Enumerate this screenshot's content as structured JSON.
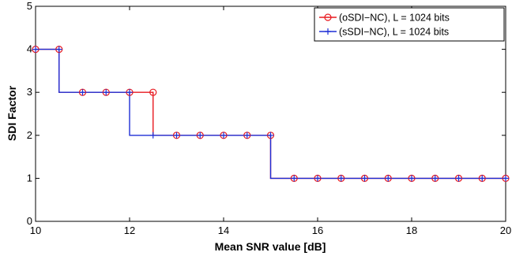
{
  "chart_data": {
    "type": "line",
    "xlabel": "Mean SNR value [dB]",
    "ylabel": "SDI Factor",
    "xlim": [
      10,
      20
    ],
    "ylim": [
      0,
      5
    ],
    "xticks": [
      10,
      12,
      14,
      16,
      18,
      20
    ],
    "yticks": [
      0,
      1,
      2,
      3,
      4,
      5
    ],
    "grid": false,
    "legend_position": "top-right",
    "x": [
      10,
      10.5,
      11,
      11.5,
      12,
      12.5,
      13,
      13.5,
      14,
      14.5,
      15,
      15.5,
      16,
      16.5,
      17,
      17.5,
      18,
      18.5,
      19,
      19.5,
      20
    ],
    "series": [
      {
        "name": "(oSDI−NC), L = 1024 bits",
        "color": "#e8191f",
        "marker": "circle",
        "values": [
          4,
          4,
          3,
          3,
          3,
          3,
          2,
          2,
          2,
          2,
          2,
          1,
          1,
          1,
          1,
          1,
          1,
          1,
          1,
          1,
          1
        ]
      },
      {
        "name": "(sSDI−NC), L = 1024 bits",
        "color": "#1f2fd6",
        "marker": "plus",
        "values": [
          4,
          4,
          3,
          3,
          3,
          2,
          2,
          2,
          2,
          2,
          2,
          1,
          1,
          1,
          1,
          1,
          1,
          1,
          1,
          1,
          1
        ]
      }
    ]
  }
}
